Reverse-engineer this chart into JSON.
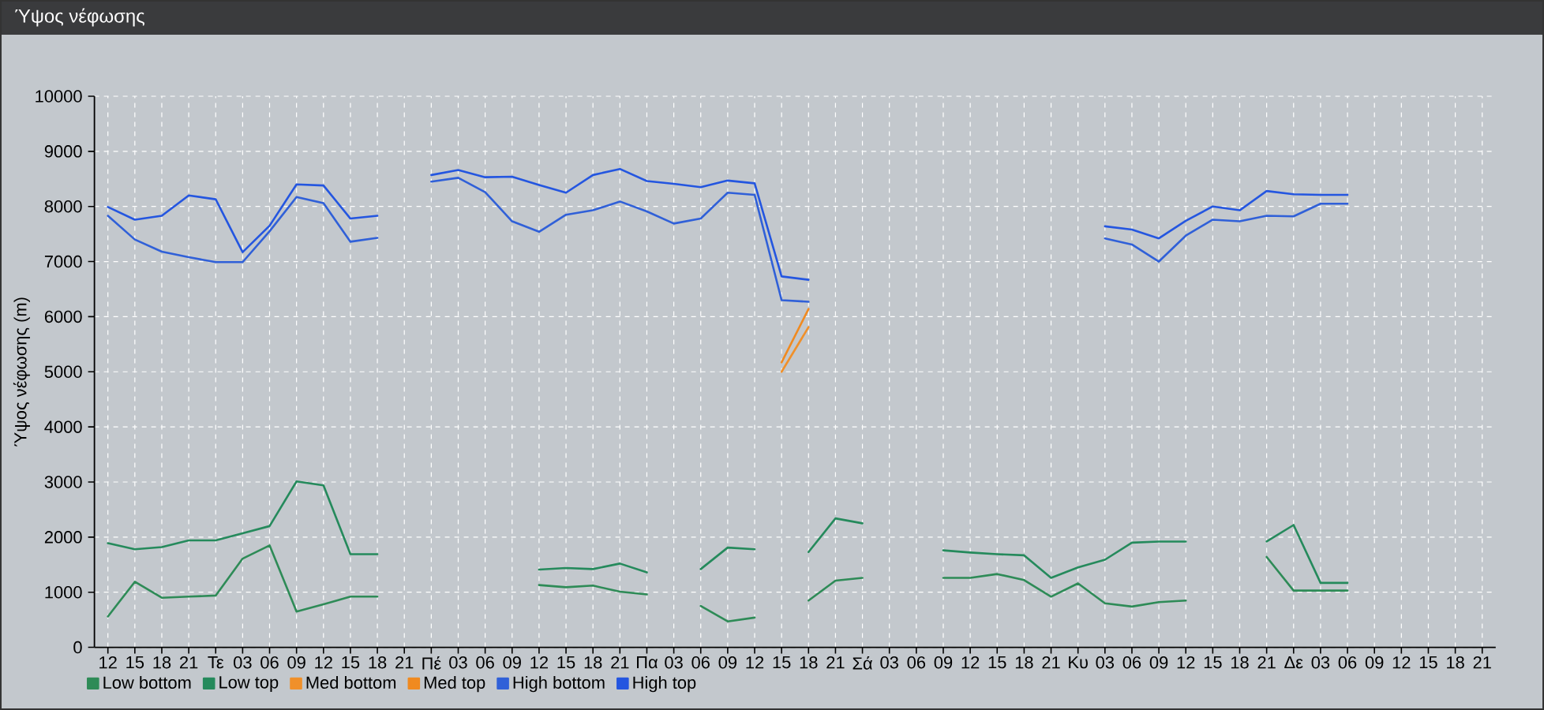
{
  "chart_data": {
    "type": "line",
    "title": "Ύψος νέφωσης",
    "ylabel": "Ύψος νέφωσης (m)",
    "categories": [
      "12",
      "15",
      "18",
      "21",
      "Τε",
      "03",
      "06",
      "09",
      "12",
      "15",
      "18",
      "21",
      "Πέ",
      "03",
      "06",
      "09",
      "12",
      "15",
      "18",
      "21",
      "Πα",
      "03",
      "06",
      "09",
      "12",
      "15",
      "18",
      "21",
      "Σά",
      "03",
      "06",
      "09",
      "12",
      "15",
      "18",
      "21",
      "Κυ",
      "03",
      "06",
      "09",
      "12",
      "15",
      "18",
      "21",
      "Δε",
      "03",
      "06",
      "09",
      "12",
      "15",
      "18",
      "21"
    ],
    "series": [
      {
        "name": "Low bottom",
        "color": "#2e8b57",
        "values": [
          560,
          1190,
          900,
          920,
          940,
          1610,
          1850,
          650,
          780,
          920,
          920,
          null,
          null,
          null,
          null,
          null,
          1130,
          1090,
          1120,
          1010,
          960,
          null,
          750,
          470,
          540,
          null,
          850,
          1210,
          1260,
          null,
          null,
          1260,
          1260,
          1330,
          1220,
          920,
          1160,
          800,
          740,
          820,
          850,
          null,
          null,
          1640,
          1030,
          1030,
          1030,
          null,
          null,
          null,
          null,
          null
        ]
      },
      {
        "name": "Low top",
        "color": "#258a5c",
        "values": [
          1890,
          1780,
          1820,
          1940,
          1940,
          2070,
          2200,
          3010,
          2940,
          1690,
          1690,
          null,
          null,
          null,
          null,
          null,
          1410,
          1440,
          1420,
          1520,
          1360,
          null,
          1420,
          1810,
          1780,
          null,
          1730,
          2340,
          2250,
          null,
          null,
          1760,
          1720,
          1690,
          1670,
          1260,
          1450,
          1590,
          1900,
          1920,
          1920,
          null,
          null,
          1920,
          2220,
          1170,
          1170,
          null,
          null,
          null,
          null,
          null
        ]
      },
      {
        "name": "Med bottom",
        "color": "#f0902a",
        "values": [
          null,
          null,
          null,
          null,
          null,
          null,
          null,
          null,
          null,
          null,
          null,
          null,
          null,
          null,
          null,
          null,
          null,
          null,
          null,
          null,
          null,
          null,
          null,
          null,
          null,
          5000,
          5810,
          null,
          null,
          null,
          null,
          null,
          null,
          null,
          null,
          null,
          null,
          null,
          null,
          null,
          null,
          null,
          null,
          null,
          null,
          null,
          null,
          null,
          null,
          null,
          null,
          null
        ]
      },
      {
        "name": "Med top",
        "color": "#f08a20",
        "values": [
          null,
          null,
          null,
          null,
          null,
          null,
          null,
          null,
          null,
          null,
          null,
          null,
          null,
          null,
          null,
          null,
          null,
          null,
          null,
          null,
          null,
          null,
          null,
          null,
          null,
          5170,
          6140,
          null,
          null,
          null,
          null,
          null,
          null,
          null,
          null,
          null,
          null,
          null,
          null,
          null,
          null,
          null,
          null,
          null,
          null,
          null,
          null,
          null,
          null,
          null,
          null,
          null
        ]
      },
      {
        "name": "High bottom",
        "color": "#3060d8",
        "values": [
          7830,
          7400,
          7180,
          7080,
          6990,
          6990,
          7550,
          8170,
          8060,
          7360,
          7430,
          null,
          8450,
          8520,
          8260,
          7730,
          7540,
          7850,
          7930,
          8090,
          7910,
          7690,
          7780,
          8250,
          8210,
          6300,
          6270,
          null,
          null,
          null,
          null,
          null,
          null,
          null,
          null,
          null,
          null,
          7420,
          7310,
          7000,
          7470,
          7760,
          7730,
          7830,
          7820,
          8050,
          8050,
          null,
          null,
          null,
          null,
          null
        ]
      },
      {
        "name": "High top",
        "color": "#2456e0",
        "values": [
          7990,
          7760,
          7830,
          8200,
          8130,
          7170,
          7650,
          8400,
          8380,
          7780,
          7830,
          null,
          8570,
          8660,
          8530,
          8540,
          8390,
          8250,
          8570,
          8680,
          8460,
          8410,
          8350,
          8470,
          8420,
          6730,
          6670,
          null,
          null,
          null,
          null,
          null,
          null,
          null,
          null,
          null,
          null,
          7640,
          7580,
          7420,
          7740,
          8000,
          7930,
          8280,
          8220,
          8210,
          8210,
          null,
          null,
          null,
          null,
          null
        ]
      }
    ],
    "ylim": [
      0,
      10000
    ],
    "yticks": [
      0,
      1000,
      2000,
      3000,
      4000,
      5000,
      6000,
      7000,
      8000,
      9000,
      10000
    ],
    "grid": true,
    "legend": "bottom"
  }
}
